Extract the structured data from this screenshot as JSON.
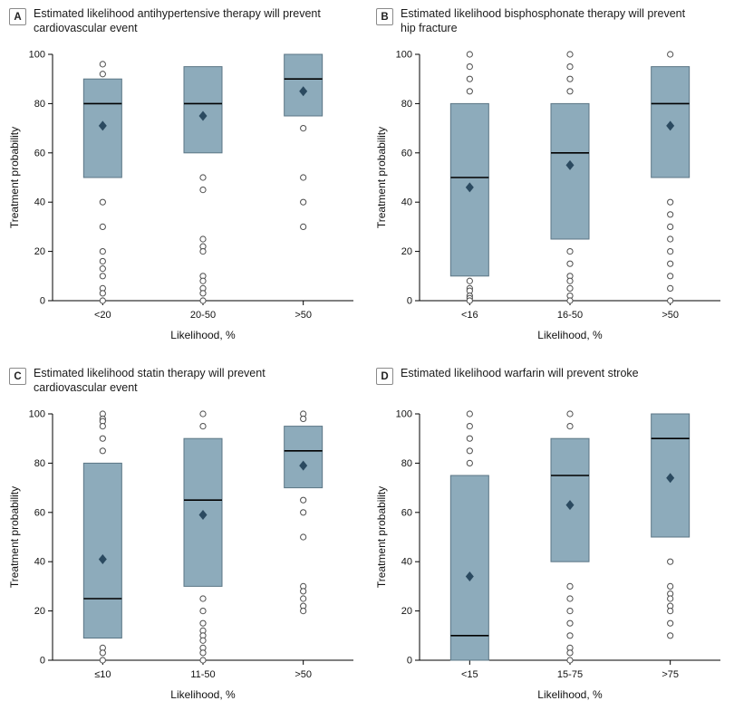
{
  "figure": {
    "description": "Four-panel box plot figure of treatment probability by estimated likelihood category"
  },
  "colors": {
    "box_fill": "#8dabbb",
    "box_stroke": "#5b7685",
    "median": "#000000",
    "mean": "#2b4a60",
    "outlier": "#4d4d4d",
    "axis": "#000000",
    "text": "#111111"
  },
  "chart_data": [
    {
      "type": "box",
      "panel_label": "A",
      "title": "Estimated likelihood antihypertensive therapy will prevent cardiovascular event",
      "xlabel": "Likelihood, %",
      "ylabel": "Treatment probability",
      "ylim": [
        0,
        100
      ],
      "yticks": [
        0,
        20,
        40,
        60,
        80,
        100
      ],
      "categories": [
        "<20",
        "20-50",
        ">50"
      ],
      "boxes": [
        {
          "q1": 50,
          "q3": 90,
          "median": 80,
          "mean": 71,
          "outliers": [
            96,
            92,
            40,
            30,
            20,
            16,
            13,
            10,
            5,
            3,
            0
          ]
        },
        {
          "q1": 60,
          "q3": 95,
          "median": 80,
          "mean": 75,
          "outliers": [
            50,
            45,
            25,
            22,
            20,
            10,
            8,
            5,
            3,
            0
          ]
        },
        {
          "q1": 75,
          "q3": 100,
          "median": 90,
          "mean": 85,
          "outliers": [
            70,
            50,
            40,
            30
          ]
        }
      ]
    },
    {
      "type": "box",
      "panel_label": "B",
      "title": "Estimated likelihood bisphosphonate therapy will prevent hip fracture",
      "xlabel": "Likelihood, %",
      "ylabel": "Treatment probability",
      "ylim": [
        0,
        100
      ],
      "yticks": [
        0,
        20,
        40,
        60,
        80,
        100
      ],
      "categories": [
        "<16",
        "16-50",
        ">50"
      ],
      "boxes": [
        {
          "q1": 10,
          "q3": 80,
          "median": 50,
          "mean": 46,
          "outliers": [
            100,
            95,
            90,
            85,
            8,
            5,
            4,
            2,
            1,
            0
          ]
        },
        {
          "q1": 25,
          "q3": 80,
          "median": 60,
          "mean": 55,
          "outliers": [
            100,
            95,
            90,
            85,
            20,
            15,
            10,
            8,
            5,
            2,
            0
          ]
        },
        {
          "q1": 50,
          "q3": 95,
          "median": 80,
          "mean": 71,
          "outliers": [
            100,
            40,
            35,
            30,
            25,
            20,
            15,
            10,
            5,
            0
          ]
        }
      ]
    },
    {
      "type": "box",
      "panel_label": "C",
      "title": "Estimated likelihood statin therapy will prevent cardiovascular event",
      "xlabel": "Likelihood, %",
      "ylabel": "Treatment probability",
      "ylim": [
        0,
        100
      ],
      "yticks": [
        0,
        20,
        40,
        60,
        80,
        100
      ],
      "categories": [
        "≤10",
        "11-50",
        ">50"
      ],
      "boxes": [
        {
          "q1": 9,
          "q3": 80,
          "median": 25,
          "mean": 41,
          "outliers": [
            100,
            98,
            97,
            95,
            90,
            85,
            5,
            3,
            0
          ]
        },
        {
          "q1": 30,
          "q3": 90,
          "median": 65,
          "mean": 59,
          "outliers": [
            100,
            95,
            25,
            20,
            15,
            12,
            10,
            8,
            5,
            3,
            0
          ]
        },
        {
          "q1": 70,
          "q3": 95,
          "median": 85,
          "mean": 79,
          "outliers": [
            100,
            98,
            65,
            60,
            50,
            30,
            28,
            25,
            22,
            20
          ]
        }
      ]
    },
    {
      "type": "box",
      "panel_label": "D",
      "title": "Estimated likelihood warfarin will prevent stroke",
      "xlabel": "Likelihood, %",
      "ylabel": "Treatment probability",
      "ylim": [
        0,
        100
      ],
      "yticks": [
        0,
        20,
        40,
        60,
        80,
        100
      ],
      "categories": [
        "<15",
        "15-75",
        ">75"
      ],
      "boxes": [
        {
          "q1": 0,
          "q3": 75,
          "median": 10,
          "mean": 34,
          "outliers": [
            100,
            95,
            90,
            85,
            80
          ]
        },
        {
          "q1": 40,
          "q3": 90,
          "median": 75,
          "mean": 63,
          "outliers": [
            100,
            95,
            30,
            25,
            20,
            15,
            10,
            5,
            3,
            0
          ]
        },
        {
          "q1": 50,
          "q3": 100,
          "median": 90,
          "mean": 74,
          "outliers": [
            40,
            30,
            27,
            25,
            22,
            20,
            15,
            10
          ]
        }
      ]
    }
  ]
}
